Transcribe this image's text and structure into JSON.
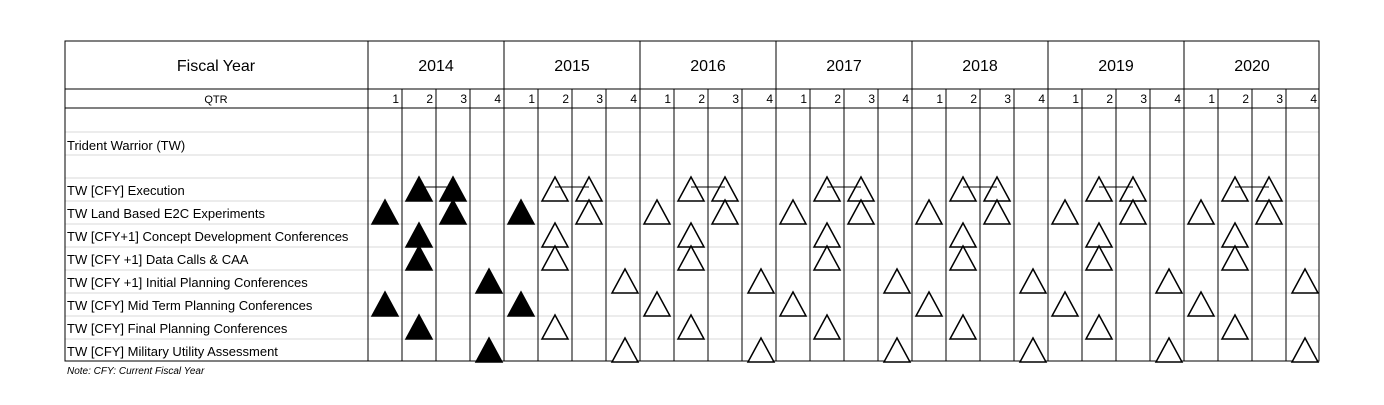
{
  "header": {
    "fiscal_year_label": "Fiscal Year",
    "qtr_label": "QTR",
    "years": [
      "2014",
      "2015",
      "2016",
      "2017",
      "2018",
      "2019",
      "2020"
    ],
    "quarters": [
      "1",
      "2",
      "3",
      "4"
    ]
  },
  "section_title": "Trident Warrior (TW)",
  "rows": [
    {
      "label": "TW [CFY] Execution",
      "marks": [
        {
          "year": "2014",
          "q": 2,
          "filled": true
        },
        {
          "year": "2014",
          "q": 3,
          "filled": true
        },
        {
          "year": "2015",
          "q": 2,
          "filled": false
        },
        {
          "year": "2015",
          "q": 3,
          "filled": false
        },
        {
          "year": "2016",
          "q": 2,
          "filled": false
        },
        {
          "year": "2016",
          "q": 3,
          "filled": false
        },
        {
          "year": "2017",
          "q": 2,
          "filled": false
        },
        {
          "year": "2017",
          "q": 3,
          "filled": false
        },
        {
          "year": "2018",
          "q": 2,
          "filled": false
        },
        {
          "year": "2018",
          "q": 3,
          "filled": false
        },
        {
          "year": "2019",
          "q": 2,
          "filled": false
        },
        {
          "year": "2019",
          "q": 3,
          "filled": false
        },
        {
          "year": "2020",
          "q": 2,
          "filled": false
        },
        {
          "year": "2020",
          "q": 3,
          "filled": false
        }
      ],
      "connect_q2_q3": true
    },
    {
      "label": "TW Land Based E2C Experiments",
      "marks": [
        {
          "year": "2014",
          "q": 1,
          "filled": true
        },
        {
          "year": "2014",
          "q": 3,
          "filled": true
        },
        {
          "year": "2015",
          "q": 1,
          "filled": true
        },
        {
          "year": "2015",
          "q": 3,
          "filled": false
        },
        {
          "year": "2016",
          "q": 1,
          "filled": false
        },
        {
          "year": "2016",
          "q": 3,
          "filled": false
        },
        {
          "year": "2017",
          "q": 1,
          "filled": false
        },
        {
          "year": "2017",
          "q": 3,
          "filled": false
        },
        {
          "year": "2018",
          "q": 1,
          "filled": false
        },
        {
          "year": "2018",
          "q": 3,
          "filled": false
        },
        {
          "year": "2019",
          "q": 1,
          "filled": false
        },
        {
          "year": "2019",
          "q": 3,
          "filled": false
        },
        {
          "year": "2020",
          "q": 1,
          "filled": false
        },
        {
          "year": "2020",
          "q": 3,
          "filled": false
        }
      ]
    },
    {
      "label": "TW [CFY+1] Concept Development Conferences",
      "marks": [
        {
          "year": "2014",
          "q": 2,
          "filled": true
        },
        {
          "year": "2015",
          "q": 2,
          "filled": false
        },
        {
          "year": "2016",
          "q": 2,
          "filled": false
        },
        {
          "year": "2017",
          "q": 2,
          "filled": false
        },
        {
          "year": "2018",
          "q": 2,
          "filled": false
        },
        {
          "year": "2019",
          "q": 2,
          "filled": false
        },
        {
          "year": "2020",
          "q": 2,
          "filled": false
        }
      ]
    },
    {
      "label": "TW [CFY +1] Data Calls & CAA",
      "marks": [
        {
          "year": "2014",
          "q": 2,
          "filled": true
        },
        {
          "year": "2015",
          "q": 2,
          "filled": false
        },
        {
          "year": "2016",
          "q": 2,
          "filled": false
        },
        {
          "year": "2017",
          "q": 2,
          "filled": false
        },
        {
          "year": "2018",
          "q": 2,
          "filled": false
        },
        {
          "year": "2019",
          "q": 2,
          "filled": false
        },
        {
          "year": "2020",
          "q": 2,
          "filled": false
        }
      ]
    },
    {
      "label": "TW [CFY +1] Initial Planning Conferences",
      "marks": [
        {
          "year": "2014",
          "q": 4,
          "filled": true
        },
        {
          "year": "2015",
          "q": 4,
          "filled": false
        },
        {
          "year": "2016",
          "q": 4,
          "filled": false
        },
        {
          "year": "2017",
          "q": 4,
          "filled": false
        },
        {
          "year": "2018",
          "q": 4,
          "filled": false
        },
        {
          "year": "2019",
          "q": 4,
          "filled": false
        },
        {
          "year": "2020",
          "q": 4,
          "filled": false
        }
      ]
    },
    {
      "label": "TW [CFY] Mid Term Planning Conferences",
      "marks": [
        {
          "year": "2014",
          "q": 1,
          "filled": true
        },
        {
          "year": "2015",
          "q": 1,
          "filled": true
        },
        {
          "year": "2016",
          "q": 1,
          "filled": false
        },
        {
          "year": "2017",
          "q": 1,
          "filled": false
        },
        {
          "year": "2018",
          "q": 1,
          "filled": false
        },
        {
          "year": "2019",
          "q": 1,
          "filled": false
        },
        {
          "year": "2020",
          "q": 1,
          "filled": false
        }
      ]
    },
    {
      "label": "TW [CFY] Final Planning Conferences",
      "marks": [
        {
          "year": "2014",
          "q": 2,
          "filled": true
        },
        {
          "year": "2015",
          "q": 2,
          "filled": false
        },
        {
          "year": "2016",
          "q": 2,
          "filled": false
        },
        {
          "year": "2017",
          "q": 2,
          "filled": false
        },
        {
          "year": "2018",
          "q": 2,
          "filled": false
        },
        {
          "year": "2019",
          "q": 2,
          "filled": false
        },
        {
          "year": "2020",
          "q": 2,
          "filled": false
        }
      ]
    },
    {
      "label": "TW [CFY] Military Utility Assessment",
      "marks": [
        {
          "year": "2014",
          "q": 4,
          "filled": true
        },
        {
          "year": "2015",
          "q": 4,
          "filled": false
        },
        {
          "year": "2016",
          "q": 4,
          "filled": false
        },
        {
          "year": "2017",
          "q": 4,
          "filled": false
        },
        {
          "year": "2018",
          "q": 4,
          "filled": false
        },
        {
          "year": "2019",
          "q": 4,
          "filled": false
        },
        {
          "year": "2020",
          "q": 4,
          "filled": false
        }
      ]
    }
  ],
  "note": "Note: CFY: Current Fiscal Year",
  "colors": {
    "grid": "#000000",
    "light_grid": "#d9d9d9",
    "mark": "#000000"
  }
}
